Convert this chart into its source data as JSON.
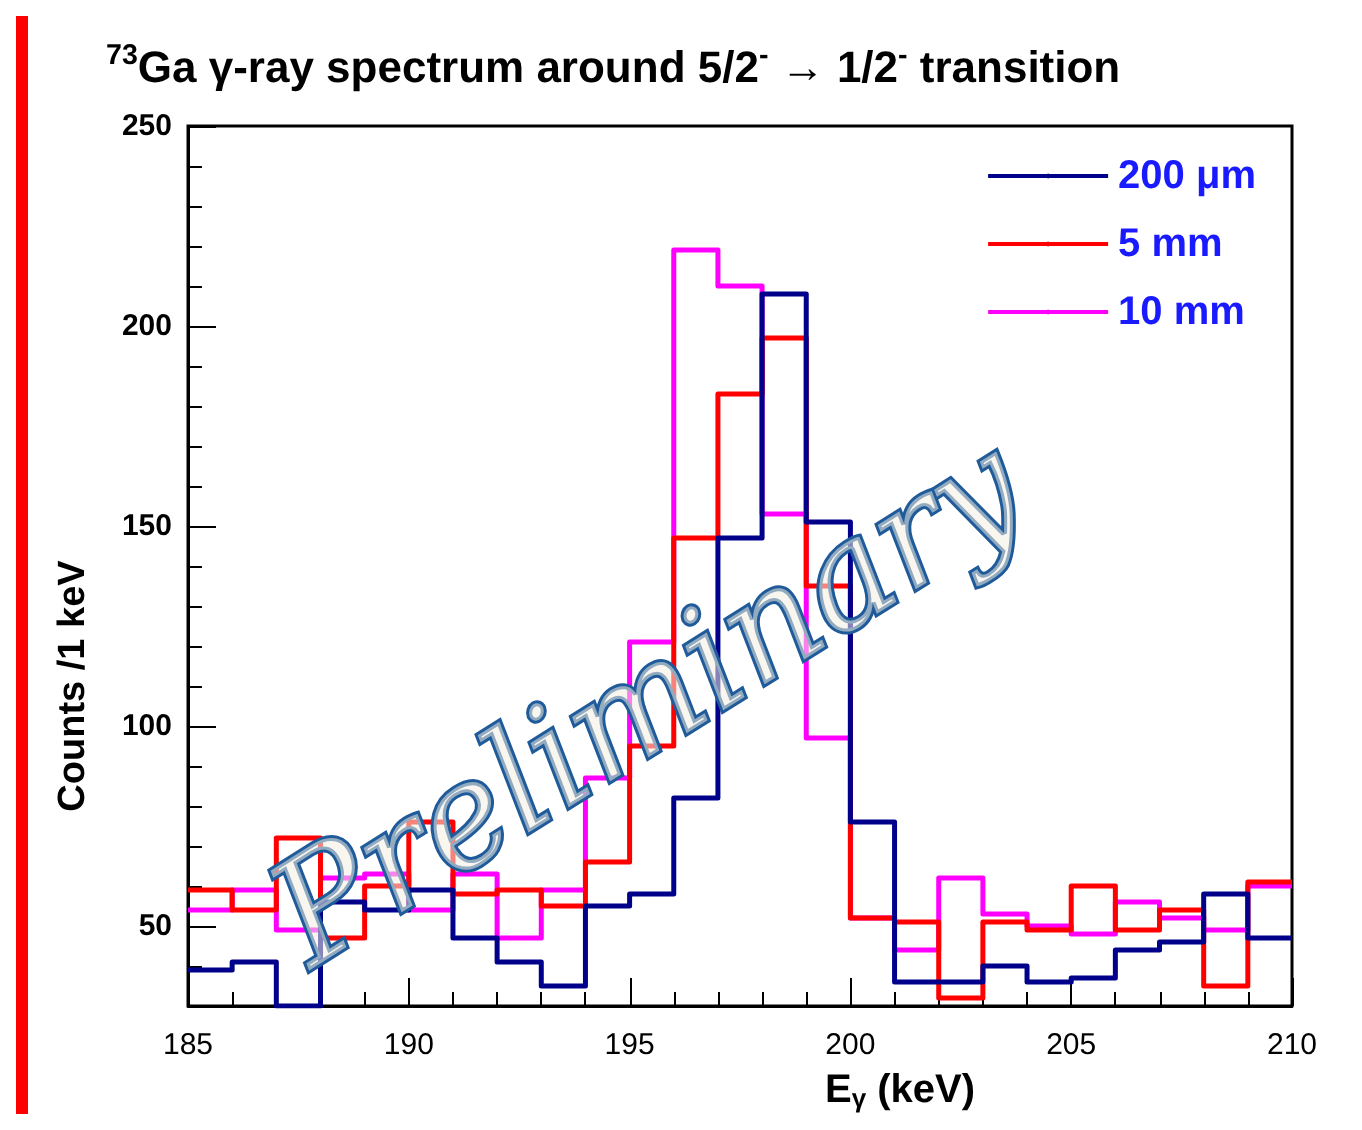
{
  "chart_data": {
    "type": "histogram",
    "title": "$^{73}$Ga γ-ray spectrum around 5/2$^{-}$ → 1/2$^{-}$ transition",
    "xlabel": "E$_{γ}$ (keV)",
    "ylabel": "Counts /1 keV",
    "bins": [
      185,
      186,
      187,
      188,
      189,
      190,
      191,
      192,
      193,
      194,
      195,
      196,
      197,
      198,
      199,
      200,
      201,
      202,
      203,
      204,
      205,
      206,
      207,
      208,
      209,
      210
    ],
    "series": [
      {
        "name": "200 μm",
        "color": "#00008b",
        "values": [
          39,
          41,
          30,
          56,
          54,
          59,
          47,
          41,
          35,
          55,
          58,
          82,
          147,
          208,
          151,
          76,
          36,
          36,
          40,
          36,
          37,
          44,
          46,
          58,
          47
        ]
      },
      {
        "name": "5 mm",
        "color": "#ff0000",
        "values": [
          59,
          54,
          72,
          47,
          60,
          76,
          58,
          59,
          55,
          66,
          95,
          147,
          183,
          197,
          135,
          52,
          51,
          32,
          51,
          49,
          60,
          49,
          54,
          35,
          61
        ]
      },
      {
        "name": "10 mm",
        "color": "#ff00ff",
        "values": [
          54,
          59,
          49,
          62,
          63,
          54,
          63,
          47,
          59,
          87,
          121,
          219,
          210,
          153,
          97,
          52,
          44,
          62,
          53,
          50,
          48,
          56,
          52,
          49,
          60
        ]
      }
    ],
    "xlim": [
      185,
      210
    ],
    "xticks": [
      185,
      190,
      195,
      200,
      205,
      210
    ],
    "ylim": [
      30,
      250
    ],
    "yticks": [
      50,
      100,
      150,
      200,
      250
    ],
    "legend": "top right",
    "grid": false,
    "marker": "none",
    "line_style": "solid",
    "annotations": [
      "Preliminary"
    ]
  }
}
